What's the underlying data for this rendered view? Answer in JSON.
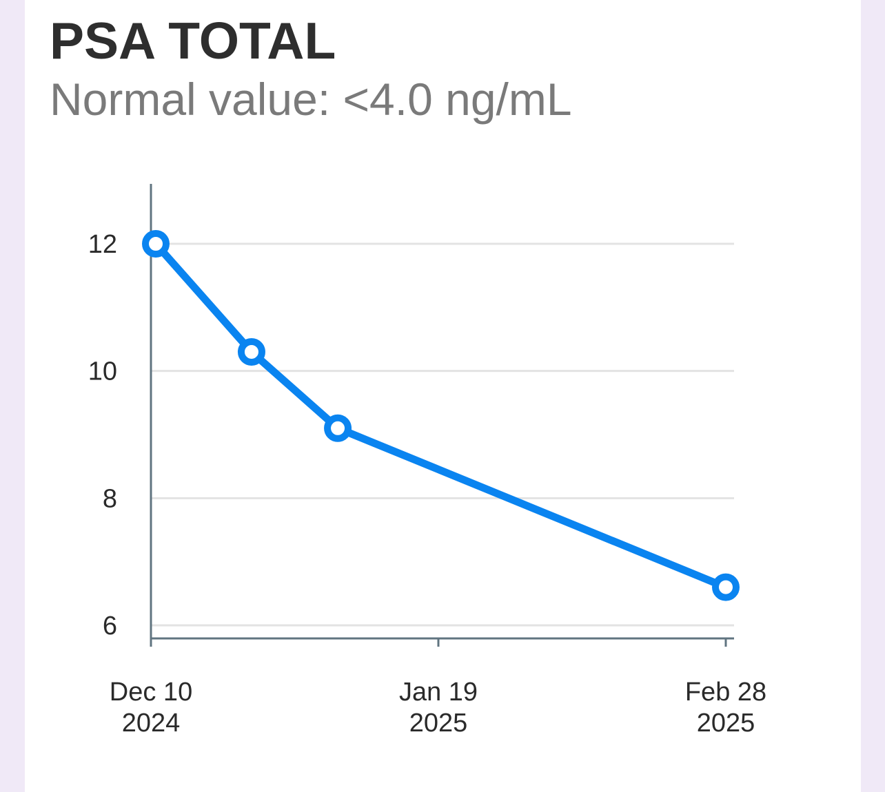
{
  "card": {
    "title": "PSA TOTAL",
    "subtitle": "Normal value: <4.0 ng/mL"
  },
  "colors": {
    "line": "#0a84f0",
    "axis": "#607480",
    "grid": "#e3e3e3",
    "background": "#f0e9f7",
    "card": "#ffffff"
  },
  "chart_data": {
    "type": "line",
    "x": [
      "2024-12-10",
      "2024-12-24",
      "2025-01-05",
      "2025-02-28"
    ],
    "y": [
      12.0,
      10.3,
      9.1,
      6.6
    ],
    "xlim": [
      "2024-12-10",
      "2025-03-01"
    ],
    "ylim": [
      5.8,
      12.9
    ],
    "yticks": [
      6,
      8,
      10,
      12
    ],
    "xticks": [
      {
        "date": "2024-12-10",
        "line1": "Dec 10",
        "line2": "2024"
      },
      {
        "date": "2025-01-19",
        "line1": "Jan 19",
        "line2": "2025"
      },
      {
        "date": "2025-02-28",
        "line1": "Feb 28",
        "line2": "2025"
      }
    ],
    "grid": true,
    "markers": "hollow-circle"
  }
}
